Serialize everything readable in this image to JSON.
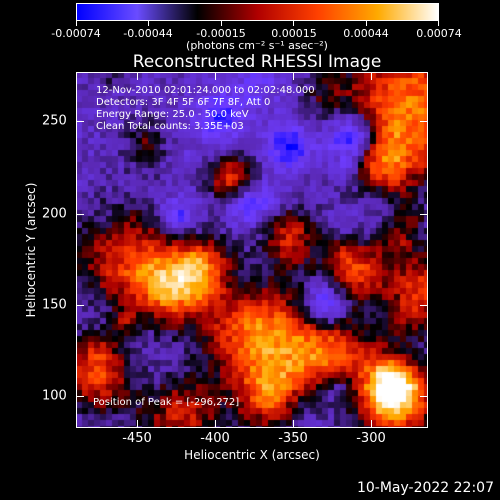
{
  "colorbar": {
    "tick_labels": [
      "-0.00074",
      "-0.00044",
      "-0.00015",
      "0.00015",
      "0.00044",
      "0.00074"
    ],
    "unit": "(photons cm⁻² s⁻¹ asec⁻²)",
    "colors": [
      "#0000ff",
      "#6a4cff",
      "#000000",
      "#b00000",
      "#ff4000",
      "#ffaa00",
      "#ffffff"
    ]
  },
  "title": "Reconstructed RHESSI Image",
  "info": {
    "line1": "12-Nov-2010 02:01:24.000 to 02:02:48.000",
    "line2": "Detectors: 3F 4F 5F 6F 7F 8F, Att 0",
    "line3": "Energy Range: 25.0 - 50.0 keV",
    "line4": "Clean     Total counts: 3.35E+03"
  },
  "peak_text": "Position of Peak = [-296,272]",
  "axes": {
    "x_label": "Heliocentric X (arcsec)",
    "y_label": "Heliocentric Y (arcsec)",
    "x_ticks": [
      "-450",
      "-400",
      "-350",
      "-300"
    ],
    "y_ticks": [
      "250",
      "200",
      "150",
      "100"
    ]
  },
  "datestamp": "10-May-2022 22:07"
}
